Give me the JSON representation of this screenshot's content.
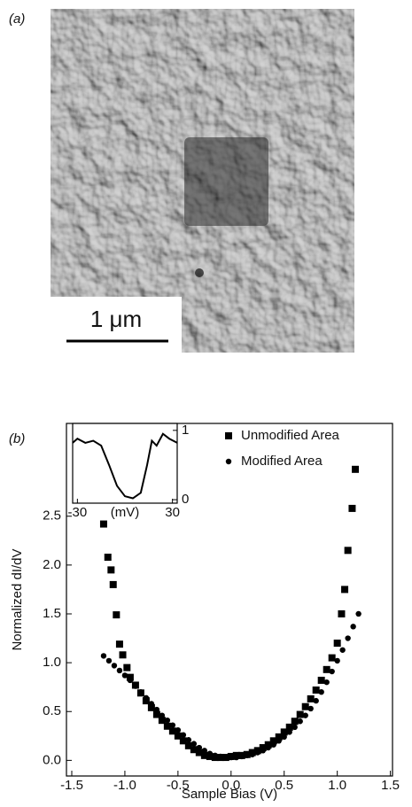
{
  "panel_a": {
    "label": "(a)",
    "scale_bar": "1 μm"
  },
  "panel_b": {
    "label": "(b)"
  },
  "chart_data": {
    "type": "scatter",
    "xlabel": "Sample Bias (V)",
    "ylabel": "Normalized dI/dV",
    "xlim": [
      -1.55,
      1.52
    ],
    "ylim": [
      -0.16,
      3.45
    ],
    "xticks": [
      -1.5,
      {
        "value": -1,
        "label": "-1.0"
      },
      -0.5,
      {
        "value": 0,
        "label": "0.0"
      },
      0.5,
      {
        "value": 1,
        "label": "1.0"
      },
      1.5
    ],
    "yticks": [
      {
        "value": 0,
        "label": "0.0"
      },
      0.5,
      {
        "value": 1,
        "label": "1.0"
      },
      1.5,
      {
        "value": 2,
        "label": "2.0"
      },
      2.5
    ],
    "legend": "upper right",
    "series": [
      {
        "name": "Unmodified Area",
        "color": "#000000",
        "marker": "square",
        "x": [
          -1.2,
          -1.16,
          -1.13,
          -1.11,
          -1.08,
          -1.05,
          -1.02,
          -0.98,
          -0.95,
          -0.9,
          -0.85,
          -0.8,
          -0.75,
          -0.7,
          -0.65,
          -0.6,
          -0.55,
          -0.5,
          -0.45,
          -0.4,
          -0.35,
          -0.3,
          -0.25,
          -0.2,
          -0.15,
          -0.1,
          -0.05,
          0,
          0.05,
          0.1,
          0.15,
          0.2,
          0.25,
          0.3,
          0.35,
          0.4,
          0.45,
          0.5,
          0.55,
          0.6,
          0.65,
          0.7,
          0.75,
          0.8,
          0.85,
          0.9,
          0.95,
          1.0,
          1.04,
          1.07,
          1.1,
          1.14,
          1.17
        ],
        "values": [
          2.42,
          2.08,
          1.95,
          1.8,
          1.49,
          1.19,
          1.08,
          0.95,
          0.85,
          0.77,
          0.69,
          0.61,
          0.54,
          0.47,
          0.41,
          0.35,
          0.3,
          0.25,
          0.2,
          0.15,
          0.11,
          0.08,
          0.05,
          0.04,
          0.03,
          0.03,
          0.03,
          0.04,
          0.05,
          0.05,
          0.06,
          0.08,
          0.1,
          0.13,
          0.16,
          0.2,
          0.24,
          0.29,
          0.34,
          0.4,
          0.47,
          0.55,
          0.63,
          0.72,
          0.82,
          0.93,
          1.05,
          1.2,
          1.5,
          1.75,
          2.15,
          2.58,
          2.98
        ]
      },
      {
        "name": "Modified Area",
        "color": "#000000",
        "marker": "circle",
        "x": [
          -1.2,
          -1.15,
          -1.1,
          -1.05,
          -1.0,
          -0.95,
          -0.9,
          -0.85,
          -0.8,
          -0.75,
          -0.7,
          -0.65,
          -0.6,
          -0.55,
          -0.5,
          -0.45,
          -0.4,
          -0.35,
          -0.3,
          -0.25,
          -0.2,
          -0.15,
          -0.1,
          -0.05,
          0,
          0.05,
          0.1,
          0.15,
          0.2,
          0.25,
          0.3,
          0.35,
          0.4,
          0.45,
          0.5,
          0.55,
          0.6,
          0.65,
          0.7,
          0.75,
          0.8,
          0.85,
          0.9,
          0.95,
          1.0,
          1.05,
          1.1,
          1.15,
          1.2
        ],
        "values": [
          1.07,
          1.02,
          0.97,
          0.92,
          0.87,
          0.82,
          0.76,
          0.7,
          0.64,
          0.58,
          0.52,
          0.46,
          0.41,
          0.36,
          0.31,
          0.26,
          0.21,
          0.17,
          0.13,
          0.1,
          0.07,
          0.05,
          0.04,
          0.03,
          0.03,
          0.03,
          0.04,
          0.05,
          0.06,
          0.08,
          0.1,
          0.13,
          0.16,
          0.2,
          0.24,
          0.29,
          0.34,
          0.4,
          0.46,
          0.53,
          0.61,
          0.7,
          0.8,
          0.91,
          1.02,
          1.13,
          1.25,
          1.37,
          1.5
        ]
      }
    ],
    "inset": {
      "type": "line",
      "xlabel": "(mV)",
      "x": [
        -33,
        -30,
        -25,
        -20,
        -15,
        -10,
        -5,
        0,
        5,
        10,
        14,
        17,
        20,
        24,
        28,
        33
      ],
      "values": [
        0.82,
        0.88,
        0.82,
        0.85,
        0.78,
        0.5,
        0.2,
        0.05,
        0.02,
        0.1,
        0.5,
        0.85,
        0.78,
        0.95,
        0.88,
        0.82
      ],
      "xlim": [
        -33,
        33
      ],
      "ylim": [
        -0.05,
        1.1
      ],
      "xticks": [
        -30,
        30
      ],
      "yticks": [
        0,
        1
      ]
    }
  }
}
